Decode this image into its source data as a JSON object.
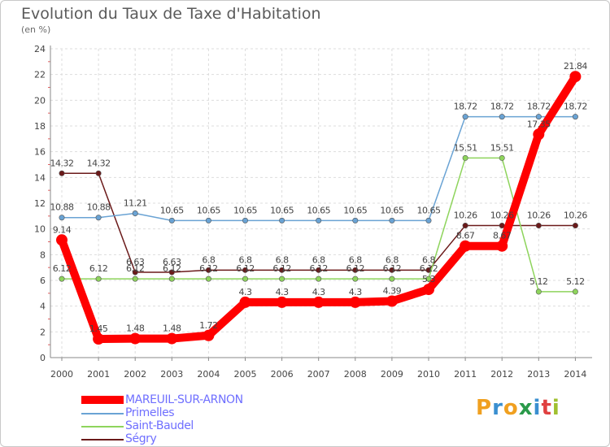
{
  "chart_data": {
    "type": "line",
    "title": "Evolution du Taux de Taxe d'Habitation",
    "subtitle": "(en %)",
    "xlabel": "",
    "ylabel": "",
    "ylim": [
      0,
      24
    ],
    "yticks": [
      "0",
      "2",
      "4",
      "6",
      "8",
      "10",
      "12",
      "14",
      "16",
      "18",
      "20",
      "22",
      "24"
    ],
    "categories": [
      "2000",
      "2001",
      "2002",
      "2003",
      "2004",
      "2005",
      "2006",
      "2007",
      "2008",
      "2009",
      "2010",
      "2011",
      "2012",
      "2013",
      "2014"
    ],
    "grid": true,
    "series": [
      {
        "name": "Ségry",
        "color": "#6b1a1a",
        "values": [
          14.32,
          14.32,
          6.63,
          6.63,
          6.8,
          6.8,
          6.8,
          6.8,
          6.8,
          6.8,
          6.8,
          10.26,
          10.26,
          10.26,
          10.26
        ],
        "labels": [
          "14.32",
          "14.32",
          "6.63",
          "6.63",
          "6.8",
          "6.8",
          "6.8",
          "6.8",
          "6.8",
          "6.8",
          "6.8",
          "10.26",
          "10.26",
          "10.26",
          "10.26"
        ]
      },
      {
        "name": "Saint-Baudel",
        "color": "#8ed45c",
        "values": [
          6.12,
          6.12,
          6.12,
          6.12,
          6.12,
          6.12,
          6.12,
          6.12,
          6.12,
          6.12,
          6.12,
          15.51,
          15.51,
          5.12,
          5.12
        ],
        "labels": [
          "6.12",
          "6.12",
          "6.12",
          "6.12",
          "6.12",
          "6.12",
          "6.12",
          "6.12",
          "6.12",
          "6.12",
          "6.12",
          "15.51",
          "15.51",
          "5.12",
          "5.12"
        ]
      },
      {
        "name": "Primelles",
        "color": "#6aa3d4",
        "values": [
          10.88,
          10.88,
          11.21,
          10.65,
          10.65,
          10.65,
          10.65,
          10.65,
          10.65,
          10.65,
          10.65,
          18.72,
          18.72,
          18.72,
          18.72
        ],
        "labels": [
          "10.88",
          "10.88",
          "11.21",
          "10.65",
          "10.65",
          "10.65",
          "10.65",
          "10.65",
          "10.65",
          "10.65",
          "10.65",
          "18.72",
          "18.72",
          "18.72",
          "18.72"
        ]
      },
      {
        "name": "MAREUIL-SUR-ARNON",
        "color": "#ff0000",
        "values": [
          9.14,
          1.45,
          1.48,
          1.48,
          1.72,
          4.3,
          4.3,
          4.3,
          4.3,
          4.39,
          5.3,
          8.67,
          8.67,
          17.35,
          21.84
        ],
        "labels": [
          "9.14",
          "1.45",
          "1.48",
          "1.48",
          "1.72",
          "4.3",
          "4.3",
          "4.3",
          "4.3",
          "4.39",
          "5.3",
          "8.67",
          "8.67",
          "17.35",
          "21.84"
        ]
      }
    ]
  },
  "legend": {
    "items": [
      {
        "name": "MAREUIL-SUR-ARNON",
        "color": "#ff0000",
        "icon": "thick-line-swatch"
      },
      {
        "name": "Primelles",
        "color": "#6aa3d4",
        "icon": "line-swatch"
      },
      {
        "name": "Saint-Baudel",
        "color": "#8ed45c",
        "icon": "line-swatch"
      },
      {
        "name": "Ségry",
        "color": "#6b1a1a",
        "icon": "line-swatch"
      }
    ]
  },
  "logo": {
    "letters": [
      "P",
      "r",
      "o",
      "x",
      "i",
      "t",
      "i"
    ],
    "colors": [
      "#f0a020",
      "#3a8fd0",
      "#f0a020",
      "#2a9a4a",
      "#3a8fd0",
      "#e04040",
      "#a0c030"
    ]
  }
}
